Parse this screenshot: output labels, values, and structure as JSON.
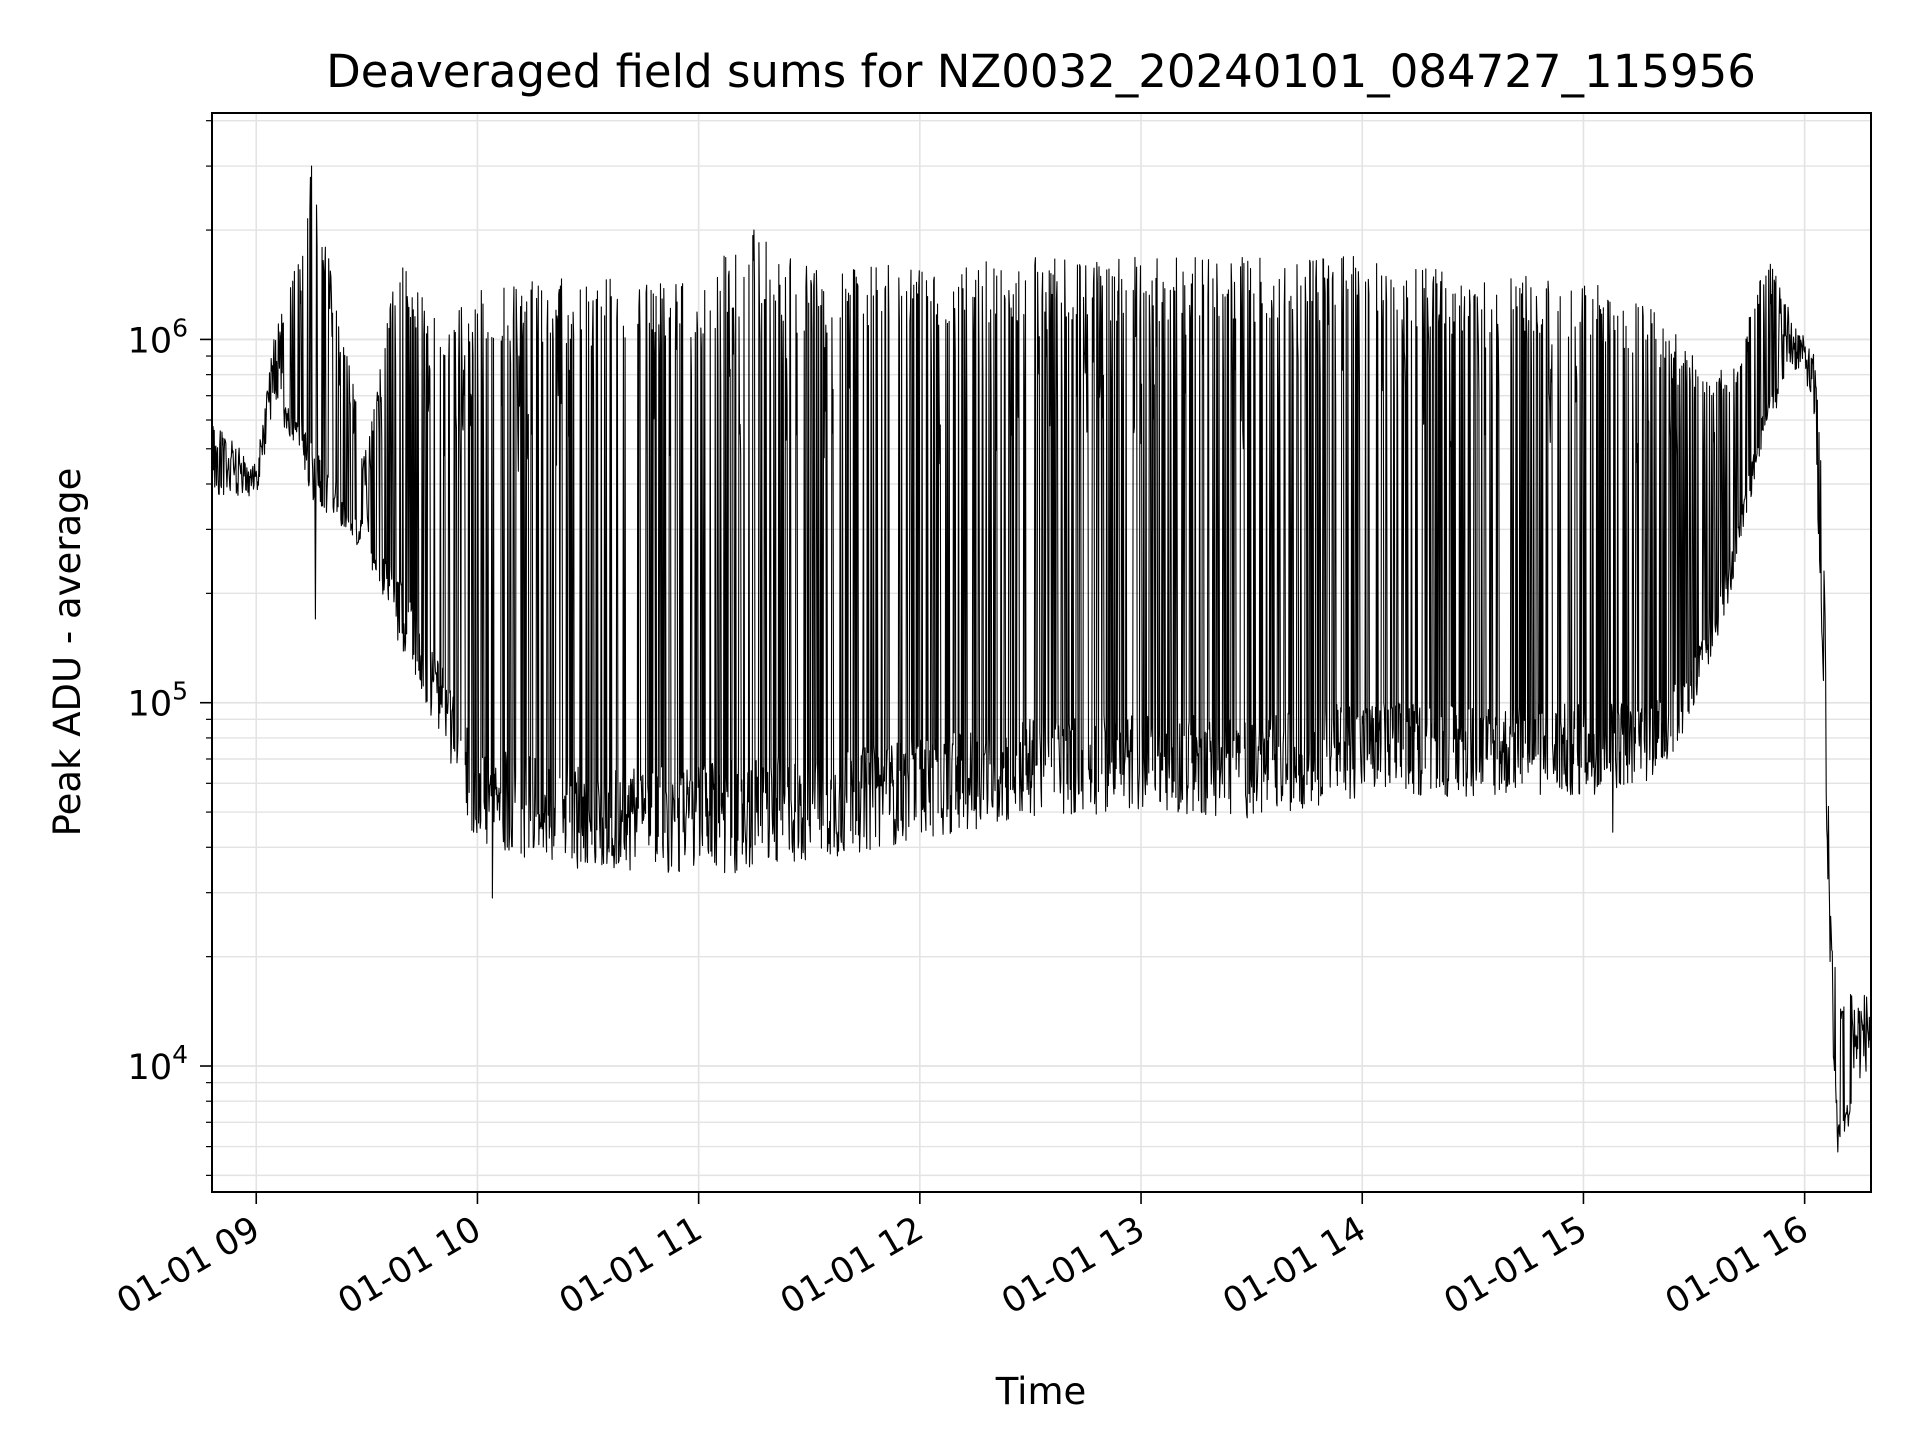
{
  "chart_data": {
    "type": "line",
    "title": "Deaveraged field sums for NZ0032_20240101_084727_115956",
    "xlabel": "Time",
    "ylabel": "Peak ADU - average",
    "yscale": "log",
    "grid": true,
    "line_color": "#000000",
    "xlim": [
      "2024-01-01T08:48",
      "2024-01-01T16:18"
    ],
    "ylim": [
      4500,
      4200000
    ],
    "x_ticks": [
      {
        "time": "2024-01-01T09:00",
        "label": "01-01 09"
      },
      {
        "time": "2024-01-01T10:00",
        "label": "01-01 10"
      },
      {
        "time": "2024-01-01T11:00",
        "label": "01-01 11"
      },
      {
        "time": "2024-01-01T12:00",
        "label": "01-01 12"
      },
      {
        "time": "2024-01-01T13:00",
        "label": "01-01 13"
      },
      {
        "time": "2024-01-01T14:00",
        "label": "01-01 14"
      },
      {
        "time": "2024-01-01T15:00",
        "label": "01-01 15"
      },
      {
        "time": "2024-01-01T16:00",
        "label": "01-01 16"
      }
    ],
    "y_ticks": [
      {
        "value": 10000,
        "base": "10",
        "exp": "4"
      },
      {
        "value": 100000,
        "base": "10",
        "exp": "5"
      },
      {
        "value": 1000000,
        "base": "10",
        "exp": "6"
      }
    ],
    "series": [
      {
        "envelope": [
          {
            "time": "2024-01-01T08:48",
            "low": 330000,
            "high": 600000
          },
          {
            "time": "2024-01-01T09:00",
            "low": 350000,
            "high": 450000
          },
          {
            "time": "2024-01-01T09:05",
            "low": 600000,
            "high": 1050000
          },
          {
            "time": "2024-01-01T09:12",
            "low": 500000,
            "high": 1800000
          },
          {
            "time": "2024-01-01T09:15",
            "low": 350000,
            "high": 3000000
          },
          {
            "time": "2024-01-01T09:20",
            "low": 330000,
            "high": 1600000
          },
          {
            "time": "2024-01-01T09:30",
            "low": 250000,
            "high": 480000
          },
          {
            "time": "2024-01-01T09:38",
            "low": 150000,
            "high": 1700000
          },
          {
            "time": "2024-01-01T09:50",
            "low": 80000,
            "high": 1100000
          },
          {
            "time": "2024-01-01T10:00",
            "low": 40000,
            "high": 1400000
          },
          {
            "time": "2024-01-01T10:30",
            "low": 34000,
            "high": 1500000
          },
          {
            "time": "2024-01-01T11:00",
            "low": 34000,
            "high": 1500000
          },
          {
            "time": "2024-01-01T11:15",
            "low": 34000,
            "high": 2000000
          },
          {
            "time": "2024-01-01T11:30",
            "low": 36000,
            "high": 1600000
          },
          {
            "time": "2024-01-01T12:00",
            "low": 42000,
            "high": 1600000
          },
          {
            "time": "2024-01-01T12:30",
            "low": 48000,
            "high": 1700000
          },
          {
            "time": "2024-01-01T13:00",
            "low": 50000,
            "high": 1700000
          },
          {
            "time": "2024-01-01T13:30",
            "low": 48000,
            "high": 1700000
          },
          {
            "time": "2024-01-01T14:00",
            "low": 55000,
            "high": 1700000
          },
          {
            "time": "2024-01-01T14:30",
            "low": 55000,
            "high": 1500000
          },
          {
            "time": "2024-01-01T15:00",
            "low": 55000,
            "high": 1500000
          },
          {
            "time": "2024-01-01T15:20",
            "low": 62000,
            "high": 1200000
          },
          {
            "time": "2024-01-01T15:30",
            "low": 90000,
            "high": 900000
          },
          {
            "time": "2024-01-01T15:40",
            "low": 200000,
            "high": 800000
          },
          {
            "time": "2024-01-01T15:50",
            "low": 600000,
            "high": 1700000
          },
          {
            "time": "2024-01-01T16:00",
            "low": 800000,
            "high": 1000000
          },
          {
            "time": "2024-01-01T16:03",
            "low": 450000,
            "high": 900000
          },
          {
            "time": "2024-01-01T16:05",
            "low": 120000,
            "high": 350000
          },
          {
            "time": "2024-01-01T16:07",
            "low": 15000,
            "high": 30000
          },
          {
            "time": "2024-01-01T16:09",
            "low": 6000,
            "high": 16000
          },
          {
            "time": "2024-01-01T16:18",
            "low": 9000,
            "high": 16000
          }
        ],
        "notable_points": [
          {
            "time": "2024-01-01T09:15",
            "value": 3000000
          },
          {
            "time": "2024-01-01T09:16",
            "value": 170000
          },
          {
            "time": "2024-01-01T10:04",
            "value": 29000
          },
          {
            "time": "2024-01-01T11:15",
            "value": 2000000
          },
          {
            "time": "2024-01-01T15:08",
            "value": 44000
          },
          {
            "time": "2024-01-01T16:09",
            "value": 5800
          }
        ]
      }
    ]
  }
}
